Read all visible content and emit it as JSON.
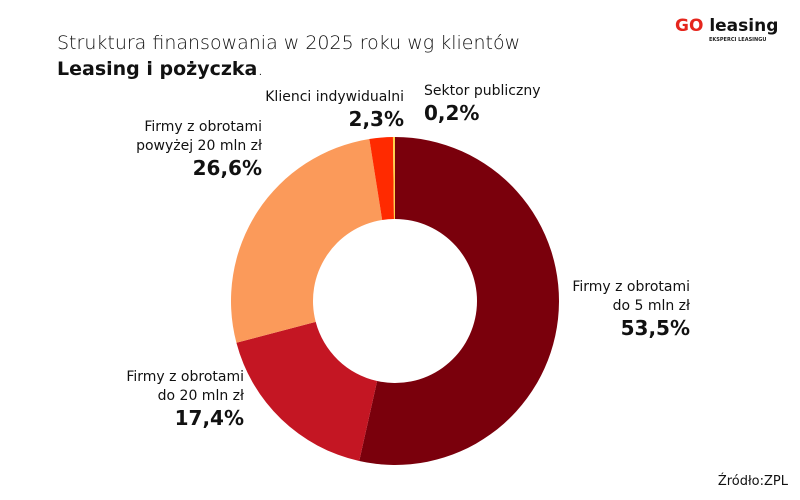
{
  "title": {
    "line1": "Struktura finansowania w 2025 roku wg klientów",
    "line2": "Leasing i pożyczka",
    "line2_suffix": "."
  },
  "logo": {
    "text_go": "GO",
    "text_leasing": "leasing",
    "tagline": "EKSPERCI LEASINGU"
  },
  "source": "Źródło:ZPL",
  "chart_data": {
    "type": "pie",
    "donut": true,
    "start": "top",
    "direction": "clockwise",
    "slices": [
      {
        "label_line1": "Firmy z obrotami",
        "label_line2": "do 5 mln zł",
        "value": 53.5,
        "value_label": "53,5%",
        "color": "#7a000c"
      },
      {
        "label_line1": "Firmy z obrotami",
        "label_line2": "do 20 mln zł",
        "value": 17.4,
        "value_label": "17,4%",
        "color": "#c41623"
      },
      {
        "label_line1": "Firmy z obrotami",
        "label_line2": "powyżej 20 mln zł",
        "value": 26.6,
        "value_label": "26,6%",
        "color": "#fb9a5a"
      },
      {
        "label_line1": "Klienci indywidualni",
        "label_line2": "",
        "value": 2.3,
        "value_label": "2,3%",
        "color": "#ff2a00"
      },
      {
        "label_line1": "Sektor publiczny",
        "label_line2": "",
        "value": 0.2,
        "value_label": "0,2%",
        "color": "#ffd24a"
      }
    ]
  }
}
